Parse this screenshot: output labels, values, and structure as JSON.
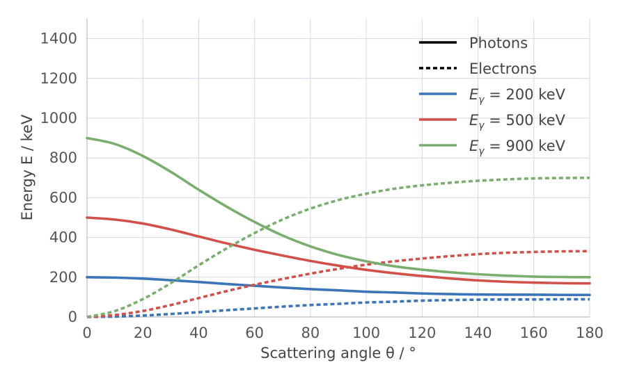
{
  "chart_data": {
    "type": "line",
    "xlabel": "Scattering angle θ / °",
    "ylabel": "Energy E / keV",
    "xlim": [
      0,
      180
    ],
    "ylim": [
      0,
      1500
    ],
    "xticks": [
      0,
      20,
      40,
      60,
      80,
      100,
      120,
      140,
      160,
      180
    ],
    "yticks": [
      0,
      200,
      400,
      600,
      800,
      1000,
      1200,
      1400
    ],
    "grid": true,
    "legend_position": "top-right",
    "legend": [
      {
        "label": "Photons",
        "style": "solid",
        "color": "#000000"
      },
      {
        "label": "Electrons",
        "style": "dotted",
        "color": "#000000"
      },
      {
        "label": "E_γ = 200 keV",
        "color": "#3b75b8"
      },
      {
        "label": "E_γ = 500 keV",
        "color": "#d2504a"
      },
      {
        "label": "E_γ = 900 keV",
        "color": "#7aae6e"
      }
    ],
    "x": [
      0,
      10,
      20,
      30,
      40,
      50,
      60,
      70,
      80,
      90,
      100,
      110,
      120,
      130,
      140,
      150,
      160,
      170,
      180
    ],
    "series": [
      {
        "name": "Photons, E_γ = 200 keV",
        "kind": "photon",
        "color": "#3b75b8",
        "values": [
          200,
          198,
          193,
          185,
          176,
          166,
          157,
          148,
          140,
          134,
          127,
          123,
          118,
          115,
          113,
          112,
          112,
          111,
          111
        ]
      },
      {
        "name": "Electrons, E_γ = 200 keV",
        "kind": "electron",
        "color": "#3b75b8",
        "values": [
          0,
          2,
          7,
          15,
          24,
          34,
          43,
          52,
          60,
          66,
          73,
          77,
          82,
          85,
          87,
          88,
          88,
          89,
          89
        ]
      },
      {
        "name": "Photons, E_γ = 500 keV",
        "kind": "photon",
        "color": "#d2504a",
        "values": [
          500,
          490,
          470,
          440,
          405,
          370,
          338,
          309,
          282,
          258,
          237,
          220,
          206,
          194,
          184,
          177,
          173,
          170,
          169
        ]
      },
      {
        "name": "Electrons, E_γ = 500 keV",
        "kind": "electron",
        "color": "#d2504a",
        "values": [
          0,
          10,
          30,
          60,
          95,
          130,
          162,
          191,
          218,
          242,
          263,
          280,
          294,
          306,
          316,
          323,
          327,
          330,
          331
        ]
      },
      {
        "name": "Photons, E_γ = 900 keV",
        "kind": "photon",
        "color": "#7aae6e",
        "values": [
          900,
          870,
          810,
          730,
          640,
          555,
          478,
          410,
          355,
          312,
          280,
          255,
          238,
          225,
          215,
          208,
          203,
          201,
          200
        ]
      },
      {
        "name": "Electrons, E_γ = 900 keV",
        "kind": "electron",
        "color": "#7aae6e",
        "values": [
          0,
          30,
          90,
          170,
          260,
          345,
          422,
          490,
          545,
          588,
          620,
          645,
          662,
          675,
          685,
          692,
          697,
          699,
          700
        ]
      }
    ]
  }
}
